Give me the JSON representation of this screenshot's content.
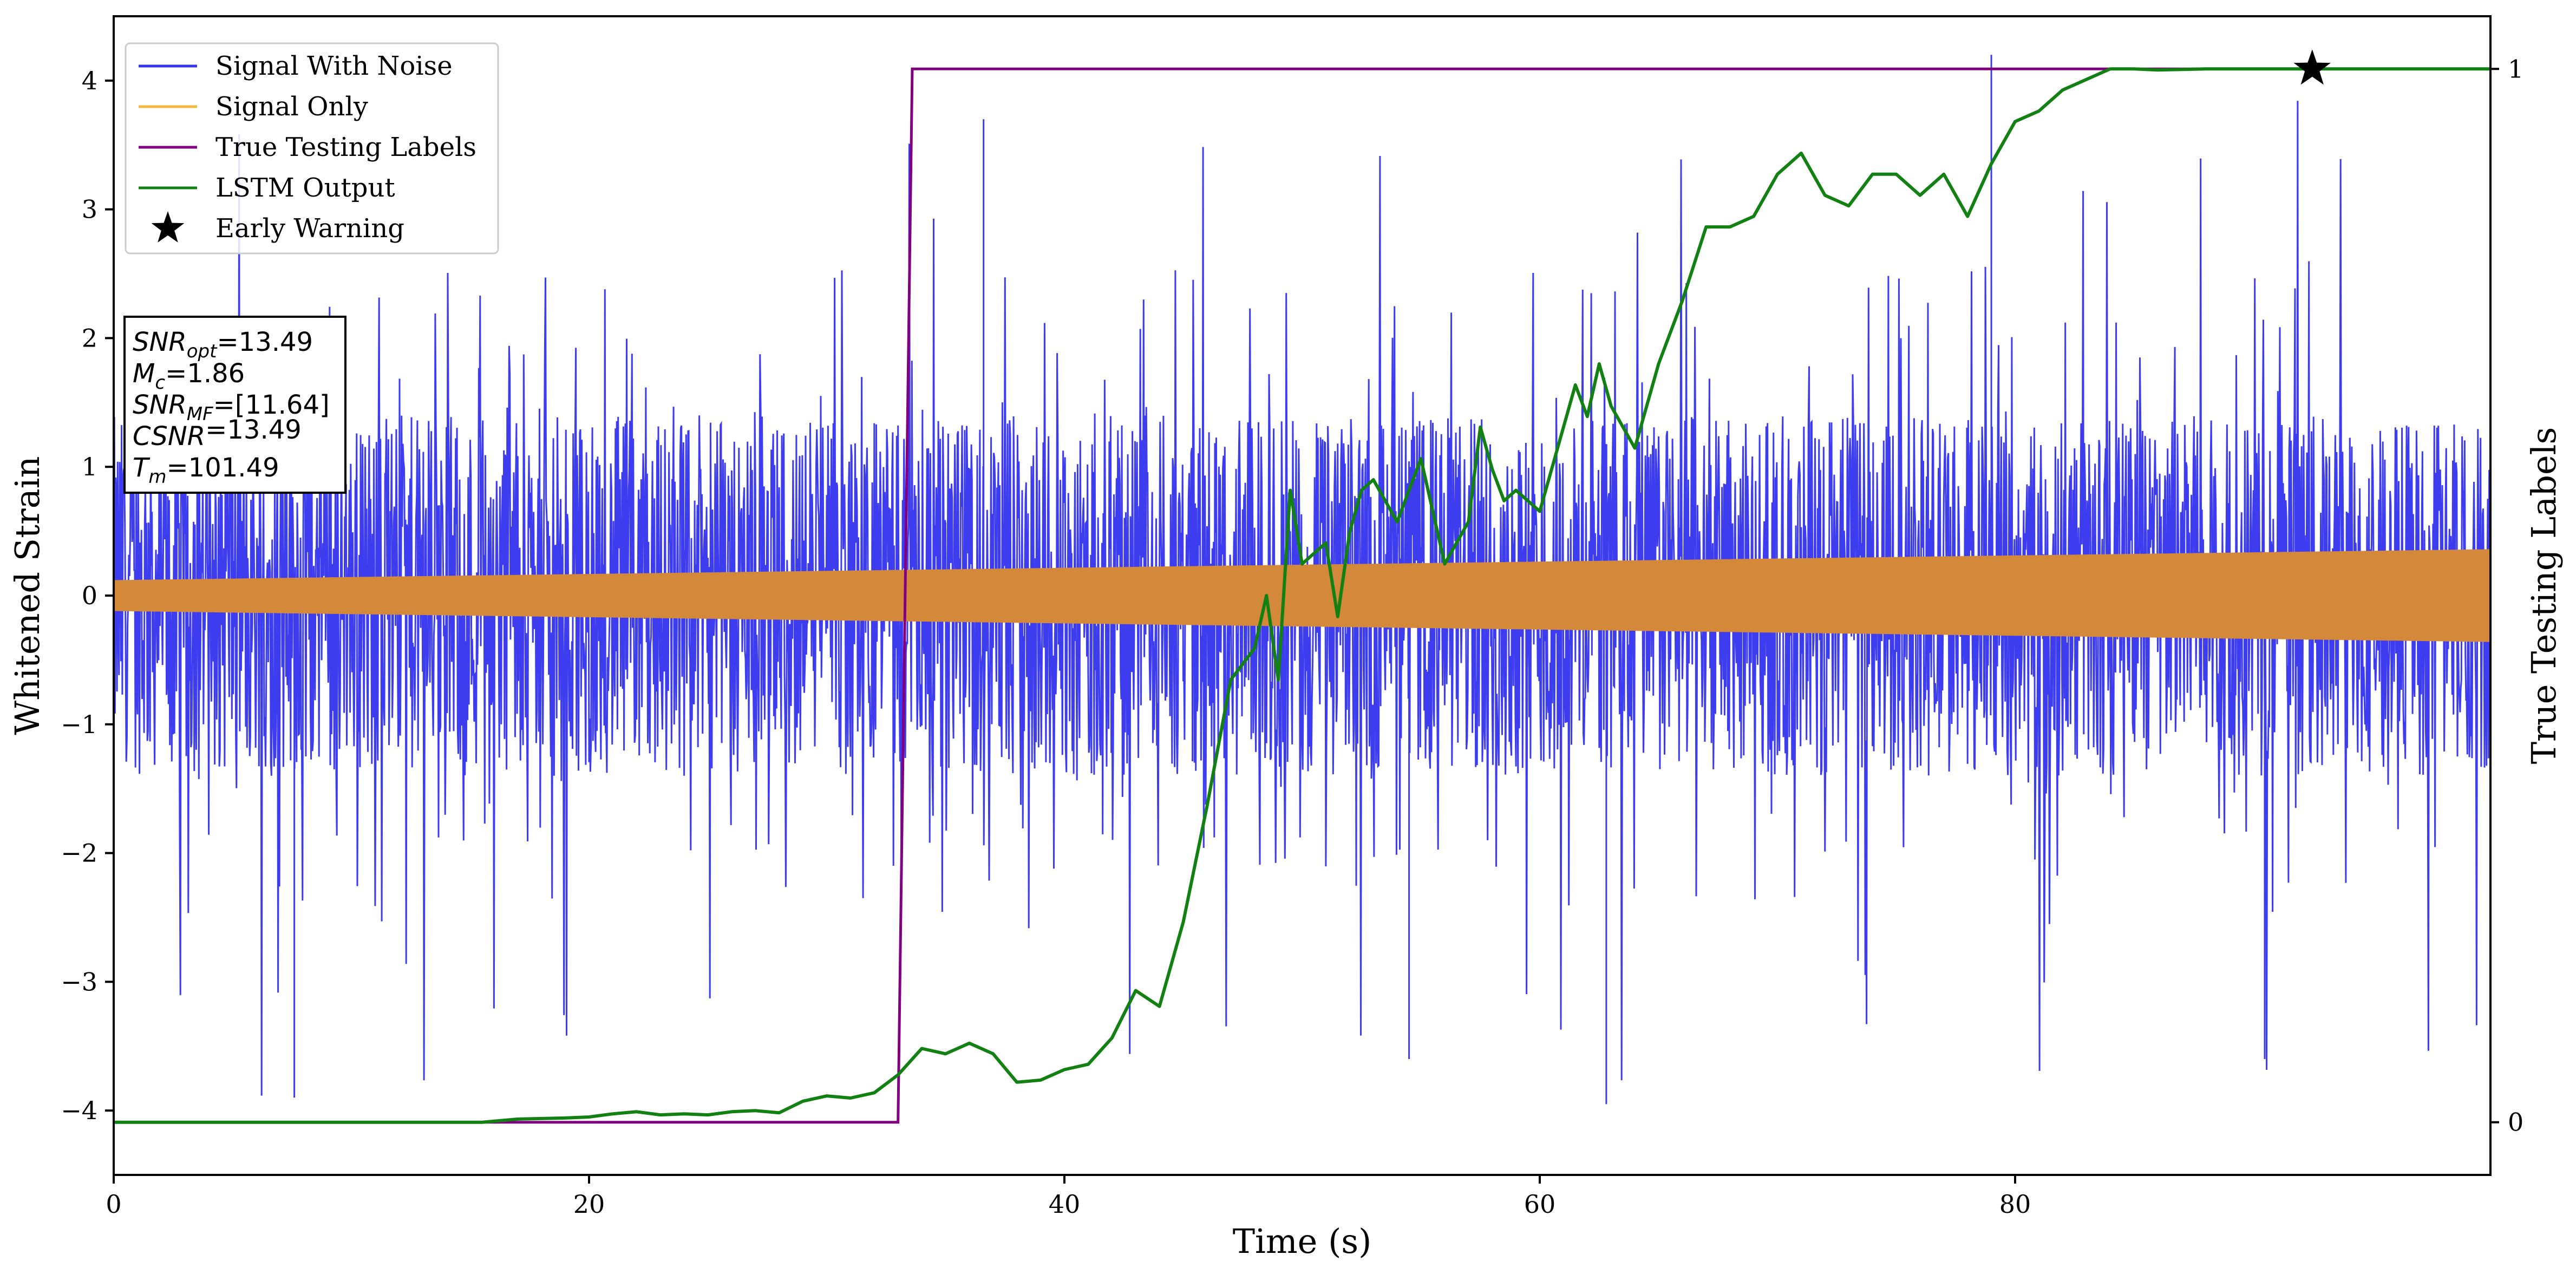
{
  "chart_data": {
    "type": "line",
    "xlabel": "Time (s)",
    "ylabel": "Whitened Strain",
    "y2label": "True Testing Labels",
    "xlim": [
      0,
      100
    ],
    "ylim": [
      -4.5,
      4.5
    ],
    "y2lim": [
      -0.05,
      1.05
    ],
    "x_ticks": [
      0,
      20,
      40,
      60,
      80
    ],
    "x_tick_labels": [
      "0",
      "20",
      "40",
      "60",
      "80"
    ],
    "y_ticks": [
      -4,
      -3,
      -2,
      -1,
      0,
      1,
      2,
      3,
      4
    ],
    "y_tick_labels": [
      "−4",
      "−3",
      "−2",
      "−1",
      "0",
      "1",
      "2",
      "3",
      "4"
    ],
    "y2_ticks": [
      0,
      1
    ],
    "y2_tick_labels": [
      "0",
      "1"
    ],
    "grid": false,
    "legend_position": "top-left",
    "legend": [
      {
        "label": "Signal With Noise",
        "color": "#3333ee",
        "marker": "line"
      },
      {
        "label": "Signal Only",
        "color": "#f5b942",
        "marker": "line"
      },
      {
        "label": "True Testing Labels",
        "color": "#800080",
        "marker": "line"
      },
      {
        "label": "LSTM Output",
        "color": "#138013",
        "marker": "line"
      },
      {
        "label": "Early Warning",
        "color": "#000000",
        "marker": "star"
      }
    ],
    "annotation": {
      "lines": [
        {
          "var": "SNR",
          "sub": "opt",
          "value": "=13.49"
        },
        {
          "var": "M",
          "sub": "c",
          "value": "=1.86"
        },
        {
          "var": "SNR",
          "sub": "MF",
          "value": "=[11.64]"
        },
        {
          "var": "CSNR",
          "sub": "",
          "value": "=13.49"
        },
        {
          "var": "T",
          "sub": "m",
          "value": "=101.49"
        }
      ]
    },
    "series": [
      {
        "name": "Signal With Noise",
        "axis": "left",
        "color": "#3333ee",
        "style": "noise-band",
        "x_range": [
          0,
          100
        ],
        "typical_amplitude": 1.4,
        "max": 4.2,
        "min": -3.95
      },
      {
        "name": "Signal Only",
        "axis": "left",
        "color": "#d4883a",
        "style": "chirp-envelope",
        "x": [
          0,
          100
        ],
        "amplitude": [
          0.12,
          0.36
        ]
      },
      {
        "name": "True Testing Labels",
        "axis": "right",
        "color": "#800080",
        "x": [
          0,
          33,
          33.6,
          100
        ],
        "y": [
          0,
          0,
          1,
          1
        ]
      },
      {
        "name": "LSTM Output",
        "axis": "right",
        "color": "#138013",
        "x": [
          0,
          15.5,
          17,
          19,
          20,
          21,
          22,
          23,
          24,
          25,
          26,
          27,
          28,
          29,
          30,
          31,
          32,
          33,
          34,
          35,
          36,
          37,
          38,
          39,
          40,
          41,
          42,
          43,
          44,
          45,
          46,
          47,
          48,
          48.5,
          49,
          49.5,
          50,
          51,
          51.5,
          52,
          52.5,
          53,
          54,
          54.5,
          55,
          56,
          56.5,
          57,
          57.5,
          58,
          58.5,
          59,
          60,
          61,
          61.5,
          62,
          62.5,
          63,
          63.5,
          64,
          65,
          66,
          67,
          68,
          69,
          70,
          71,
          72,
          73,
          74,
          75,
          76,
          77,
          78,
          79,
          80,
          81,
          82,
          83,
          84,
          85,
          86,
          88,
          90,
          92,
          94,
          96,
          98,
          100
        ],
        "y": [
          0,
          0,
          0.003,
          0.004,
          0.005,
          0.008,
          0.01,
          0.007,
          0.008,
          0.007,
          0.01,
          0.011,
          0.009,
          0.02,
          0.025,
          0.023,
          0.028,
          0.045,
          0.07,
          0.065,
          0.075,
          0.065,
          0.038,
          0.04,
          0.05,
          0.055,
          0.08,
          0.125,
          0.11,
          0.19,
          0.3,
          0.42,
          0.45,
          0.5,
          0.42,
          0.6,
          0.53,
          0.55,
          0.48,
          0.56,
          0.6,
          0.61,
          0.57,
          0.6,
          0.63,
          0.53,
          0.55,
          0.57,
          0.66,
          0.62,
          0.59,
          0.6,
          0.58,
          0.66,
          0.7,
          0.67,
          0.72,
          0.68,
          0.66,
          0.64,
          0.72,
          0.78,
          0.85,
          0.85,
          0.86,
          0.9,
          0.92,
          0.88,
          0.87,
          0.9,
          0.9,
          0.88,
          0.9,
          0.86,
          0.91,
          0.95,
          0.96,
          0.98,
          0.99,
          1.0,
          1.0,
          0.999,
          1.0,
          1.0,
          1.0,
          1.0,
          1.0,
          1.0,
          1.0
        ]
      },
      {
        "name": "Early Warning",
        "axis": "right",
        "color": "#000000",
        "type": "scatter",
        "marker": "star",
        "x": [
          92.5
        ],
        "y": [
          1.0
        ]
      }
    ]
  }
}
